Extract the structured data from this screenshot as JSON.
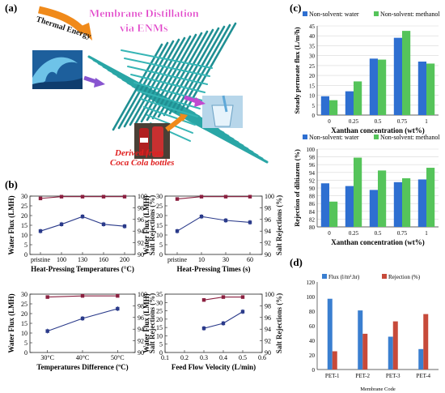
{
  "panels": {
    "a": {
      "label": "(a)",
      "title_line1": "Membrane Distillation",
      "title_line2": "via ENMs",
      "arrow_label": "Thermal Energy",
      "caption_line1": "Derived from",
      "caption_line2": "Coca Cola bottles"
    },
    "b": {
      "label": "(b)"
    },
    "c": {
      "label": "(c)"
    },
    "d": {
      "label": "(d)"
    }
  },
  "colors": {
    "water_blue": "#2e6fd1",
    "methanol_green": "#55c45a",
    "flux_blue": "#3a7fd0",
    "rejection_red": "#c74a3a",
    "flux_line": "#2a3a8a",
    "rejection_line": "#8b2040",
    "fiber": "#2aa6a6"
  },
  "chart_data": [
    {
      "id": "b1",
      "type": "line",
      "x": [
        "pristine",
        "100",
        "130",
        "160",
        "200"
      ],
      "xlabel": "Heat-Pressing Temperatures (°C)",
      "y_left_label": "Water Flux (LMH)",
      "y_left_lim": [
        0,
        30
      ],
      "y_left_ticks": [
        0,
        5,
        10,
        15,
        20,
        25,
        30
      ],
      "y_right_label": "Salt Rejections (%)",
      "y_right_lim": [
        90,
        100
      ],
      "y_right_ticks": [
        90,
        92,
        94,
        96,
        98,
        100
      ],
      "series": [
        {
          "axis": "left",
          "values": [
            12,
            15.5,
            19.5,
            15.5,
            14.5
          ]
        },
        {
          "axis": "right",
          "values": [
            99.6,
            99.9,
            99.9,
            99.9,
            99.9
          ]
        }
      ]
    },
    {
      "id": "b2",
      "type": "line",
      "x": [
        "pristine",
        "10",
        "30",
        "60"
      ],
      "xlabel": "Heat-Pressing Times (s)",
      "y_left_label": "Water Flux (LMH)",
      "y_left_lim": [
        0,
        30
      ],
      "y_left_ticks": [
        0,
        5,
        10,
        15,
        20,
        25,
        30
      ],
      "y_right_label": "Salt Rejections (%)",
      "y_right_lim": [
        90,
        100
      ],
      "y_right_ticks": [
        90,
        92,
        94,
        96,
        98,
        100
      ],
      "series": [
        {
          "axis": "left",
          "values": [
            12,
            19.5,
            17.5,
            16.5
          ]
        },
        {
          "axis": "right",
          "values": [
            99.5,
            99.9,
            99.9,
            99.9
          ]
        }
      ]
    },
    {
      "id": "b3",
      "type": "line",
      "x": [
        "30°C",
        "40°C",
        "50°C"
      ],
      "xlabel": "Temperatures Difference (ºC)",
      "y_left_label": "Water Flux (LMH)",
      "y_left_lim": [
        0,
        30
      ],
      "y_left_ticks": [
        0,
        5,
        10,
        15,
        20,
        25,
        30
      ],
      "y_right_label": "Salt Rejections (%)",
      "y_right_lim": [
        90,
        100
      ],
      "y_right_ticks": [
        90,
        92,
        94,
        96,
        98,
        100
      ],
      "series": [
        {
          "axis": "left",
          "values": [
            11,
            17.5,
            22.5
          ]
        },
        {
          "axis": "right",
          "values": [
            99.5,
            99.7,
            99.7
          ]
        }
      ]
    },
    {
      "id": "b4",
      "type": "line",
      "x": [
        0.3,
        0.4,
        0.5
      ],
      "xlabel": "Feed Flow Velocity (L/min)",
      "xlim": [
        0.1,
        0.6
      ],
      "x_ticks": [
        0.1,
        0.2,
        0.3,
        0.4,
        0.5,
        0.6
      ],
      "y_left_label": "Water Flux (LMH)",
      "y_left_lim": [
        0,
        35
      ],
      "y_left_ticks": [
        0,
        5,
        10,
        15,
        20,
        25,
        30,
        35
      ],
      "y_right_label": "Salt Rejections (%)",
      "y_right_lim": [
        90,
        100
      ],
      "y_right_ticks": [
        90,
        92,
        94,
        96,
        98,
        100
      ],
      "series": [
        {
          "axis": "left",
          "values": [
            14.5,
            17.5,
            24.5
          ]
        },
        {
          "axis": "right",
          "values": [
            99.0,
            99.5,
            99.5
          ]
        }
      ]
    },
    {
      "id": "c1",
      "type": "bar",
      "categories": [
        "0",
        "0.25",
        "0.5",
        "0.75",
        "1"
      ],
      "xlabel": "Xanthan concentration (wt%)",
      "ylabel": "Steady permeate flux (L/m²h)",
      "ylim": [
        0,
        45
      ],
      "y_ticks": [
        0,
        5,
        10,
        15,
        20,
        25,
        30,
        35,
        40,
        45
      ],
      "series": [
        {
          "name": "Non-solvent: water",
          "values": [
            9.5,
            12,
            28.5,
            39,
            27
          ]
        },
        {
          "name": "Non-solvent: methanol",
          "values": [
            7.5,
            17,
            28,
            42.5,
            26
          ]
        }
      ]
    },
    {
      "id": "c2",
      "type": "bar",
      "categories": [
        "0",
        "0.25",
        "0.5",
        "0.75",
        "1"
      ],
      "xlabel": "Xanthan concentration (wt%)",
      "ylabel": "Rejection of diltiazem (%)",
      "ylim": [
        80,
        100
      ],
      "y_ticks": [
        80,
        82,
        84,
        86,
        88,
        90,
        92,
        94,
        96,
        98,
        100
      ],
      "series": [
        {
          "name": "Non-solvent: water",
          "values": [
            91.2,
            90.5,
            89.5,
            91.5,
            92.2
          ]
        },
        {
          "name": "Non-solvent: methanol",
          "values": [
            86.5,
            97.8,
            94.5,
            92.5,
            95.2
          ]
        }
      ]
    },
    {
      "id": "d",
      "type": "bar",
      "categories": [
        "PET-1",
        "PET-2",
        "PET-3",
        "PET-4"
      ],
      "xlabel": "Membrane Code",
      "ylim": [
        0,
        120
      ],
      "y_ticks": [
        0,
        20,
        40,
        60,
        80,
        100,
        120
      ],
      "series": [
        {
          "name": "Flux (l/m².hr)",
          "values": [
            97,
            81,
            45,
            28
          ]
        },
        {
          "name": "Rejection (%)",
          "values": [
            25,
            49,
            66,
            76
          ]
        }
      ]
    }
  ]
}
